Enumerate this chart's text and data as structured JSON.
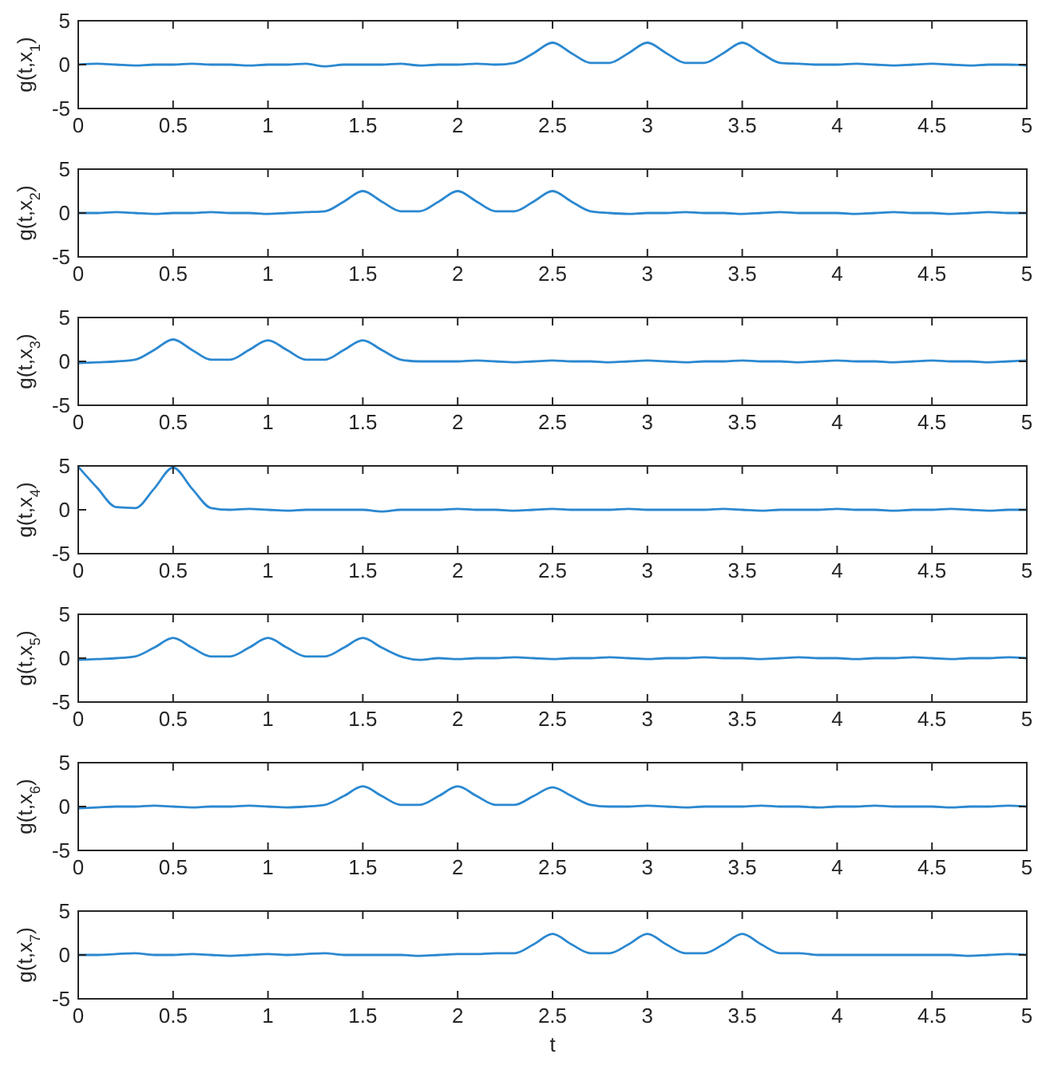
{
  "chart_data": [
    {
      "type": "line",
      "ylabel": "g(t,x$_{1}$)",
      "color": "#2b88d0",
      "xlim": [
        0,
        5
      ],
      "xticks": [
        0,
        0.5,
        1,
        1.5,
        2,
        2.5,
        3,
        3.5,
        4,
        4.5,
        5
      ],
      "ylim": [
        -5,
        5
      ],
      "yticks": [
        -5,
        0,
        5
      ],
      "x": [
        0,
        0.1,
        0.2,
        0.3,
        0.4,
        0.5,
        0.6,
        0.7,
        0.8,
        0.9,
        1,
        1.1,
        1.2,
        1.3,
        1.4,
        1.5,
        1.6,
        1.7,
        1.8,
        1.9,
        2,
        2.1,
        2.2,
        2.3,
        2.4,
        2.5,
        2.6,
        2.7,
        2.8,
        2.9,
        3,
        3.1,
        3.2,
        3.3,
        3.4,
        3.5,
        3.6,
        3.7,
        3.8,
        3.9,
        4,
        4.1,
        4.2,
        4.3,
        4.4,
        4.5,
        4.6,
        4.7,
        4.8,
        4.9,
        5
      ],
      "values": [
        0,
        0.1,
        0,
        -0.1,
        0,
        0,
        0.1,
        0,
        0,
        -0.1,
        0,
        0,
        0.1,
        -0.2,
        0,
        0,
        0,
        0.1,
        -0.1,
        0,
        0,
        0.1,
        0,
        0.2,
        1.3,
        2.5,
        1.3,
        0.2,
        0.2,
        1.3,
        2.5,
        1.3,
        0.2,
        0.2,
        1.3,
        2.5,
        1.3,
        0.2,
        0.1,
        0,
        0,
        0.1,
        0,
        -0.1,
        0,
        0.1,
        0,
        -0.1,
        0,
        0,
        -0.1
      ]
    },
    {
      "type": "line",
      "ylabel": "g(t,x$_{2}$)",
      "color": "#2b88d0",
      "xlim": [
        0,
        5
      ],
      "xticks": [
        0,
        0.5,
        1,
        1.5,
        2,
        2.5,
        3,
        3.5,
        4,
        4.5,
        5
      ],
      "ylim": [
        -5,
        5
      ],
      "yticks": [
        -5,
        0,
        5
      ],
      "x": [
        0,
        0.1,
        0.2,
        0.3,
        0.4,
        0.5,
        0.6,
        0.7,
        0.8,
        0.9,
        1,
        1.1,
        1.2,
        1.3,
        1.4,
        1.5,
        1.6,
        1.7,
        1.8,
        1.9,
        2,
        2.1,
        2.2,
        2.3,
        2.4,
        2.5,
        2.6,
        2.7,
        2.8,
        2.9,
        3,
        3.1,
        3.2,
        3.3,
        3.4,
        3.5,
        3.6,
        3.7,
        3.8,
        3.9,
        4,
        4.1,
        4.2,
        4.3,
        4.4,
        4.5,
        4.6,
        4.7,
        4.8,
        4.9,
        5
      ],
      "values": [
        0,
        0,
        0.1,
        0,
        -0.1,
        0,
        0,
        0.1,
        0,
        0,
        -0.1,
        0,
        0.1,
        0.2,
        1.3,
        2.5,
        1.3,
        0.2,
        0.2,
        1.3,
        2.5,
        1.3,
        0.2,
        0.2,
        1.3,
        2.5,
        1.3,
        0.2,
        0,
        -0.1,
        0,
        0,
        0.1,
        0,
        0,
        -0.1,
        0,
        0.1,
        0,
        0,
        0,
        -0.1,
        0,
        0.1,
        0,
        0,
        -0.1,
        0,
        0.1,
        0,
        0
      ]
    },
    {
      "type": "line",
      "ylabel": "g(t,x$_{3}$)",
      "color": "#2b88d0",
      "xlim": [
        0,
        5
      ],
      "xticks": [
        0,
        0.5,
        1,
        1.5,
        2,
        2.5,
        3,
        3.5,
        4,
        4.5,
        5
      ],
      "ylim": [
        -5,
        5
      ],
      "yticks": [
        -5,
        0,
        5
      ],
      "x": [
        0,
        0.1,
        0.2,
        0.3,
        0.4,
        0.5,
        0.6,
        0.7,
        0.8,
        0.9,
        1,
        1.1,
        1.2,
        1.3,
        1.4,
        1.5,
        1.6,
        1.7,
        1.8,
        1.9,
        2,
        2.1,
        2.2,
        2.3,
        2.4,
        2.5,
        2.6,
        2.7,
        2.8,
        2.9,
        3,
        3.1,
        3.2,
        3.3,
        3.4,
        3.5,
        3.6,
        3.7,
        3.8,
        3.9,
        4,
        4.1,
        4.2,
        4.3,
        4.4,
        4.5,
        4.6,
        4.7,
        4.8,
        4.9,
        5
      ],
      "values": [
        -0.2,
        -0.1,
        0,
        0.2,
        1.3,
        2.5,
        1.3,
        0.2,
        0.2,
        1.3,
        2.4,
        1.3,
        0.2,
        0.2,
        1.3,
        2.4,
        1.3,
        0.2,
        0,
        0,
        0,
        0.1,
        0,
        -0.1,
        0,
        0.1,
        0,
        0,
        -0.1,
        0,
        0.1,
        0,
        -0.1,
        0,
        0,
        0.1,
        0,
        0,
        -0.1,
        0,
        0.1,
        0,
        0,
        -0.1,
        0,
        0.1,
        0,
        0,
        -0.1,
        0,
        0.1
      ]
    },
    {
      "type": "line",
      "ylabel": "g(t,x$_{4}$)",
      "color": "#2b88d0",
      "xlim": [
        0,
        5
      ],
      "xticks": [
        0,
        0.5,
        1,
        1.5,
        2,
        2.5,
        3,
        3.5,
        4,
        4.5,
        5
      ],
      "ylim": [
        -5,
        5
      ],
      "yticks": [
        -5,
        0,
        5
      ],
      "x": [
        0,
        0.1,
        0.2,
        0.3,
        0.4,
        0.5,
        0.6,
        0.7,
        0.8,
        0.9,
        1,
        1.1,
        1.2,
        1.3,
        1.4,
        1.5,
        1.6,
        1.7,
        1.8,
        1.9,
        2,
        2.1,
        2.2,
        2.3,
        2.4,
        2.5,
        2.6,
        2.7,
        2.8,
        2.9,
        3,
        3.1,
        3.2,
        3.3,
        3.4,
        3.5,
        3.6,
        3.7,
        3.8,
        3.9,
        4,
        4.1,
        4.2,
        4.3,
        4.4,
        4.5,
        4.6,
        4.7,
        4.8,
        4.9,
        5
      ],
      "values": [
        4.9,
        2.5,
        0.3,
        0.2,
        2.4,
        4.8,
        2.4,
        0.2,
        0,
        0.1,
        0,
        -0.1,
        0,
        0,
        0,
        0,
        -0.2,
        0,
        0,
        0,
        0.1,
        0,
        0,
        -0.1,
        0,
        0.1,
        0,
        0,
        0,
        0.1,
        0,
        0,
        0,
        0,
        0.1,
        0,
        -0.1,
        0,
        0,
        0,
        0.1,
        0,
        0,
        -0.1,
        0,
        0,
        0.1,
        0,
        -0.1,
        0,
        0
      ]
    },
    {
      "type": "line",
      "ylabel": "g(t,x$_{5}$)",
      "color": "#2b88d0",
      "xlim": [
        0,
        5
      ],
      "xticks": [
        0,
        0.5,
        1,
        1.5,
        2,
        2.5,
        3,
        3.5,
        4,
        4.5,
        5
      ],
      "ylim": [
        -5,
        5
      ],
      "yticks": [
        -5,
        0,
        5
      ],
      "x": [
        0,
        0.1,
        0.2,
        0.3,
        0.4,
        0.5,
        0.6,
        0.7,
        0.8,
        0.9,
        1,
        1.1,
        1.2,
        1.3,
        1.4,
        1.5,
        1.6,
        1.7,
        1.8,
        1.9,
        2,
        2.1,
        2.2,
        2.3,
        2.4,
        2.5,
        2.6,
        2.7,
        2.8,
        2.9,
        3,
        3.1,
        3.2,
        3.3,
        3.4,
        3.5,
        3.6,
        3.7,
        3.8,
        3.9,
        4,
        4.1,
        4.2,
        4.3,
        4.4,
        4.5,
        4.6,
        4.7,
        4.8,
        4.9,
        5
      ],
      "values": [
        -0.2,
        -0.1,
        0,
        0.2,
        1.2,
        2.3,
        1.2,
        0.2,
        0.2,
        1.2,
        2.3,
        1.2,
        0.2,
        0.2,
        1.2,
        2.3,
        1.2,
        0.2,
        -0.2,
        0,
        -0.1,
        0,
        0,
        0.1,
        0,
        -0.1,
        0,
        0,
        0.1,
        0,
        -0.1,
        0,
        0,
        0.1,
        0,
        0,
        -0.1,
        0,
        0.1,
        0,
        0,
        -0.1,
        0,
        0,
        0.1,
        0,
        -0.1,
        0,
        0,
        0.1,
        0
      ]
    },
    {
      "type": "line",
      "ylabel": "g(t,x$_{6}$)",
      "color": "#2b88d0",
      "xlim": [
        0,
        5
      ],
      "xticks": [
        0,
        0.5,
        1,
        1.5,
        2,
        2.5,
        3,
        3.5,
        4,
        4.5,
        5
      ],
      "ylim": [
        -5,
        5
      ],
      "yticks": [
        -5,
        0,
        5
      ],
      "x": [
        0,
        0.1,
        0.2,
        0.3,
        0.4,
        0.5,
        0.6,
        0.7,
        0.8,
        0.9,
        1,
        1.1,
        1.2,
        1.3,
        1.4,
        1.5,
        1.6,
        1.7,
        1.8,
        1.9,
        2,
        2.1,
        2.2,
        2.3,
        2.4,
        2.5,
        2.6,
        2.7,
        2.8,
        2.9,
        3,
        3.1,
        3.2,
        3.3,
        3.4,
        3.5,
        3.6,
        3.7,
        3.8,
        3.9,
        4,
        4.1,
        4.2,
        4.3,
        4.4,
        4.5,
        4.6,
        4.7,
        4.8,
        4.9,
        5
      ],
      "values": [
        -0.2,
        -0.1,
        0,
        0,
        0.1,
        0,
        -0.1,
        0,
        0,
        0.1,
        0,
        -0.1,
        0,
        0.2,
        1.2,
        2.3,
        1.2,
        0.2,
        0.2,
        1.2,
        2.3,
        1.2,
        0.2,
        0.2,
        1.2,
        2.2,
        1.2,
        0.2,
        0,
        0,
        0.1,
        0,
        -0.1,
        0,
        0,
        0,
        0.1,
        0,
        0,
        -0.1,
        0,
        0,
        0.1,
        0,
        0,
        0,
        -0.1,
        0,
        0,
        0.1,
        0
      ]
    },
    {
      "type": "line",
      "ylabel": "g(t,x$_{7}$)",
      "xlabel": "t",
      "color": "#2b88d0",
      "xlim": [
        0,
        5
      ],
      "xticks": [
        0,
        0.5,
        1,
        1.5,
        2,
        2.5,
        3,
        3.5,
        4,
        4.5,
        5
      ],
      "ylim": [
        -5,
        5
      ],
      "yticks": [
        -5,
        0,
        5
      ],
      "x": [
        0,
        0.1,
        0.2,
        0.3,
        0.4,
        0.5,
        0.6,
        0.7,
        0.8,
        0.9,
        1,
        1.1,
        1.2,
        1.3,
        1.4,
        1.5,
        1.6,
        1.7,
        1.8,
        1.9,
        2,
        2.1,
        2.2,
        2.3,
        2.4,
        2.5,
        2.6,
        2.7,
        2.8,
        2.9,
        3,
        3.1,
        3.2,
        3.3,
        3.4,
        3.5,
        3.6,
        3.7,
        3.8,
        3.9,
        4,
        4.1,
        4.2,
        4.3,
        4.4,
        4.5,
        4.6,
        4.7,
        4.8,
        4.9,
        5
      ],
      "values": [
        0,
        0,
        0.1,
        0.2,
        0,
        0,
        0.1,
        0,
        -0.1,
        0,
        0.1,
        0,
        0.1,
        0.2,
        0,
        0,
        0,
        0,
        -0.1,
        0,
        0.1,
        0.1,
        0.2,
        0.2,
        1.2,
        2.4,
        1.2,
        0.2,
        0.2,
        1.2,
        2.4,
        1.2,
        0.2,
        0.2,
        1.2,
        2.4,
        1.2,
        0.2,
        0.2,
        0,
        0,
        0,
        0,
        0,
        0,
        0,
        0,
        -0.1,
        0,
        0.1,
        0
      ]
    }
  ]
}
